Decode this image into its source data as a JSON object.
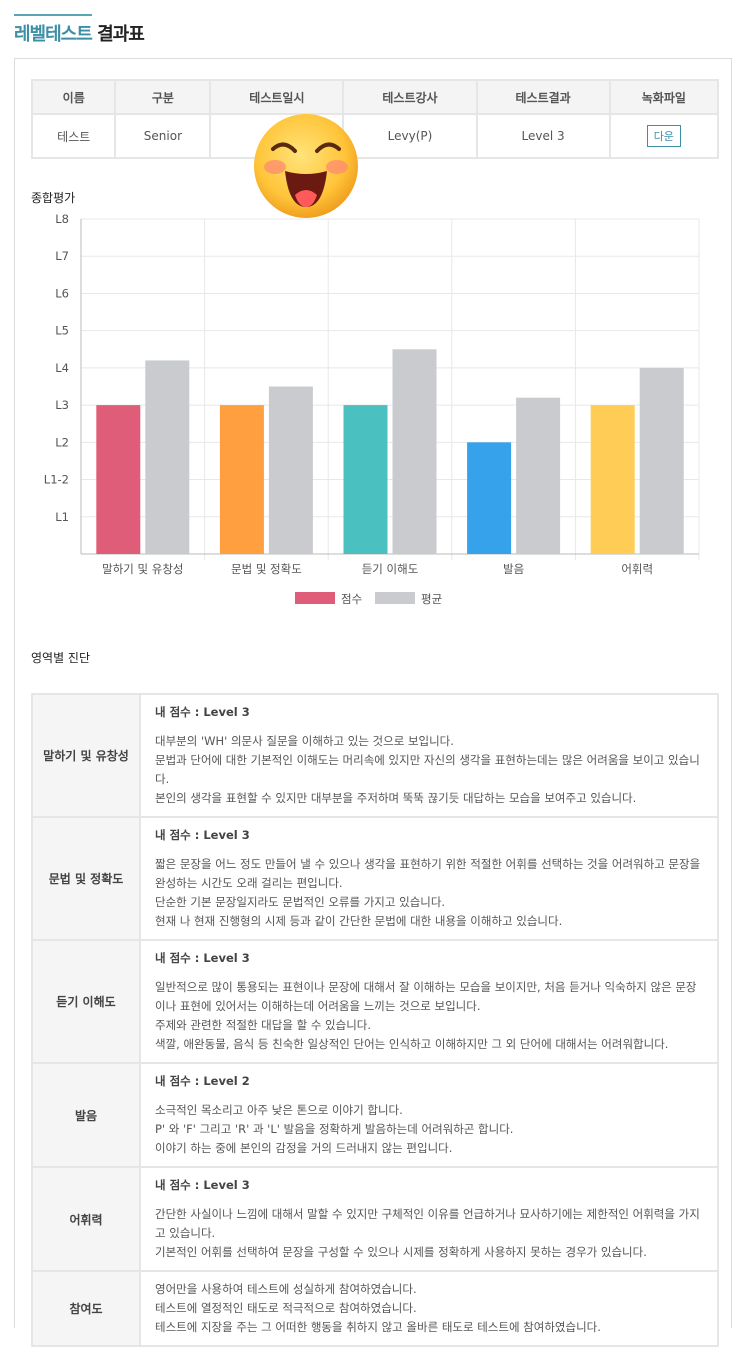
{
  "header": {
    "title_accent": "레벨테스트",
    "title_rest": "결과표"
  },
  "info_table": {
    "headers": [
      "이름",
      "구분",
      "테스트일시",
      "테스트강사",
      "테스트결과",
      "녹화파일"
    ],
    "row": {
      "name": "테스트",
      "category": "Senior",
      "datetime": "",
      "teacher": "Levy(P)",
      "result": "Level 3",
      "download": "다운"
    }
  },
  "overlay_icon": "laughing-face-emoji",
  "summary_label": "종합평가",
  "chart_data": {
    "type": "bar",
    "categories": [
      "말하기 및 유창성",
      "문법 및 정확도",
      "듣기 이해도",
      "발음",
      "어휘력"
    ],
    "y_ticks": [
      "L1",
      "L1-2",
      "L2",
      "L3",
      "L4",
      "L5",
      "L6",
      "L7",
      "L8"
    ],
    "ylim": [
      0,
      9
    ],
    "series": [
      {
        "name": "점수",
        "values": [
          4,
          4,
          4,
          3,
          4
        ],
        "colors": [
          "#e05d7a",
          "#ff9f40",
          "#4bc0c0",
          "#36a2eb",
          "#ffcd56"
        ]
      },
      {
        "name": "평균",
        "values": [
          5.2,
          4.5,
          5.5,
          4.2,
          5.0
        ],
        "color": "#c9cbcf"
      }
    ],
    "legend": "bottom",
    "grid": true
  },
  "diagnosis_label": "영역별 진단",
  "diagnosis": [
    {
      "area": "말하기 및 유창성",
      "score": "내 점수 : Level 3",
      "lines": [
        "대부분의 'WH' 의문사 질문을 이해하고 있는 것으로 보입니다.",
        "문법과 단어에 대한 기본적인 이해도는 머리속에 있지만 자신의 생각을 표현하는데는 많은 어려움을 보이고 있습니다.",
        "본인의 생각을 표현할 수 있지만 대부분을 주저하며 뚝뚝 끊기듯 대답하는 모습을 보여주고 있습니다."
      ]
    },
    {
      "area": "문법 및 정확도",
      "score": "내 점수 : Level 3",
      "lines": [
        "짧은 문장을 어느 정도 만들어 낼 수 있으나 생각을 표현하기 위한 적절한 어휘를 선택하는 것을 어려워하고 문장을 완성하는 시간도 오래 걸리는 편입니다.",
        "단순한 기본 문장일지라도 문법적인 오류를 가지고 있습니다.",
        "현재 나 현재 진행형의 시제 등과 같이 간단한 문법에 대한 내용을 이해하고 있습니다."
      ]
    },
    {
      "area": "듣기 이해도",
      "score": "내 점수 : Level 3",
      "lines": [
        "일반적으로 많이 통용되는 표현이나 문장에 대해서 잘 이해하는 모습을 보이지만, 처음 듣거나 익숙하지 않은 문장이나 표현에 있어서는 이해하는데 어려움을 느끼는 것으로 보입니다.",
        "주제와 관련한 적절한 대답을 할 수 있습니다.",
        "색깔, 애완동물, 음식 등 친숙한 일상적인 단어는 인식하고 이해하지만 그 외 단어에 대해서는 어려워합니다."
      ]
    },
    {
      "area": "발음",
      "score": "내 점수 : Level 2",
      "lines": [
        "소극적인 목소리고 아주 낮은 톤으로 이야기 합니다.",
        "P' 와 'F' 그리고 'R' 과 'L' 발음을 정확하게 발음하는데 어려워하곤 합니다.",
        "이야기 하는 중에 본인의 감정을 거의 드러내지 않는 편입니다."
      ]
    },
    {
      "area": "어휘력",
      "score": "내 점수 : Level 3",
      "lines": [
        "간단한 사실이나 느낌에 대해서 말할 수 있지만 구체적인 이유를 언급하거나 묘사하기에는 제한적인 어휘력을 가지고 있습니다.",
        "기본적인 어휘를 선택하여 문장을 구성할 수 있으나 시제를 정확하게 사용하지 못하는 경우가 있습니다."
      ]
    },
    {
      "area": "참여도",
      "score": "",
      "lines": [
        "영어만을 사용하여 테스트에 성실하게 참여하였습니다.",
        "테스트에 열정적인 태도로 적극적으로 참여하였습니다.",
        "테스트에 지장을 주는 그 어떠한 행동을 취하지 않고 올바른 태도로 테스트에 참여하였습니다."
      ]
    }
  ]
}
